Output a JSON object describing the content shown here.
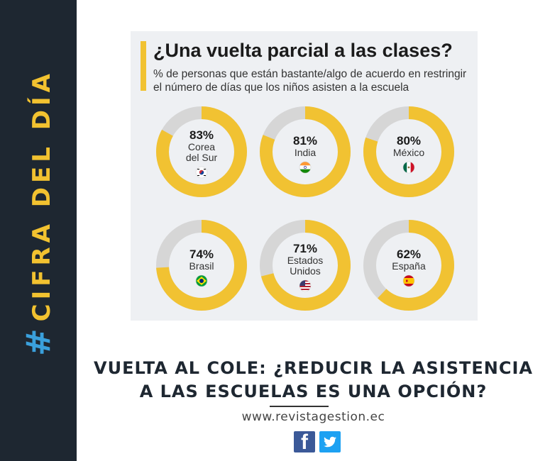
{
  "sidebar": {
    "hash_symbol": "#",
    "title": "CIFRA DEL DÍA"
  },
  "chart_data": {
    "type": "pie",
    "title": "¿Una vuelta parcial a las clases?",
    "subtitle": "% de personas que están bastante/algo de acuerdo en restringir el número de días que los niños asisten a la escuela",
    "unit": "%",
    "items": [
      {
        "value": 83,
        "label": "83%",
        "country_lines": [
          "Corea",
          "del Sur"
        ],
        "flag": "south-korea-flag"
      },
      {
        "value": 81,
        "label": "81%",
        "country_lines": [
          "India"
        ],
        "flag": "india-flag"
      },
      {
        "value": 80,
        "label": "80%",
        "country_lines": [
          "México"
        ],
        "flag": "mexico-flag"
      },
      {
        "value": 74,
        "label": "74%",
        "country_lines": [
          "Brasil"
        ],
        "flag": "brazil-flag"
      },
      {
        "value": 71,
        "label": "71%",
        "country_lines": [
          "Estados",
          "Unidos"
        ],
        "flag": "usa-flag"
      },
      {
        "value": 62,
        "label": "62%",
        "country_lines": [
          "España"
        ],
        "flag": "spain-flag"
      }
    ],
    "colors": {
      "filled": "#f1c232",
      "remaining": "#d6d6d6"
    }
  },
  "headline": {
    "line1": "VUELTA AL COLE: ¿REDUCIR LA ASISTENCIA",
    "line2": "A LAS ESCUELAS ES UNA OPCIÓN?"
  },
  "footer": {
    "url": "www.revistagestion.ec",
    "facebook_icon": "facebook-icon",
    "twitter_icon": "twitter-icon"
  }
}
